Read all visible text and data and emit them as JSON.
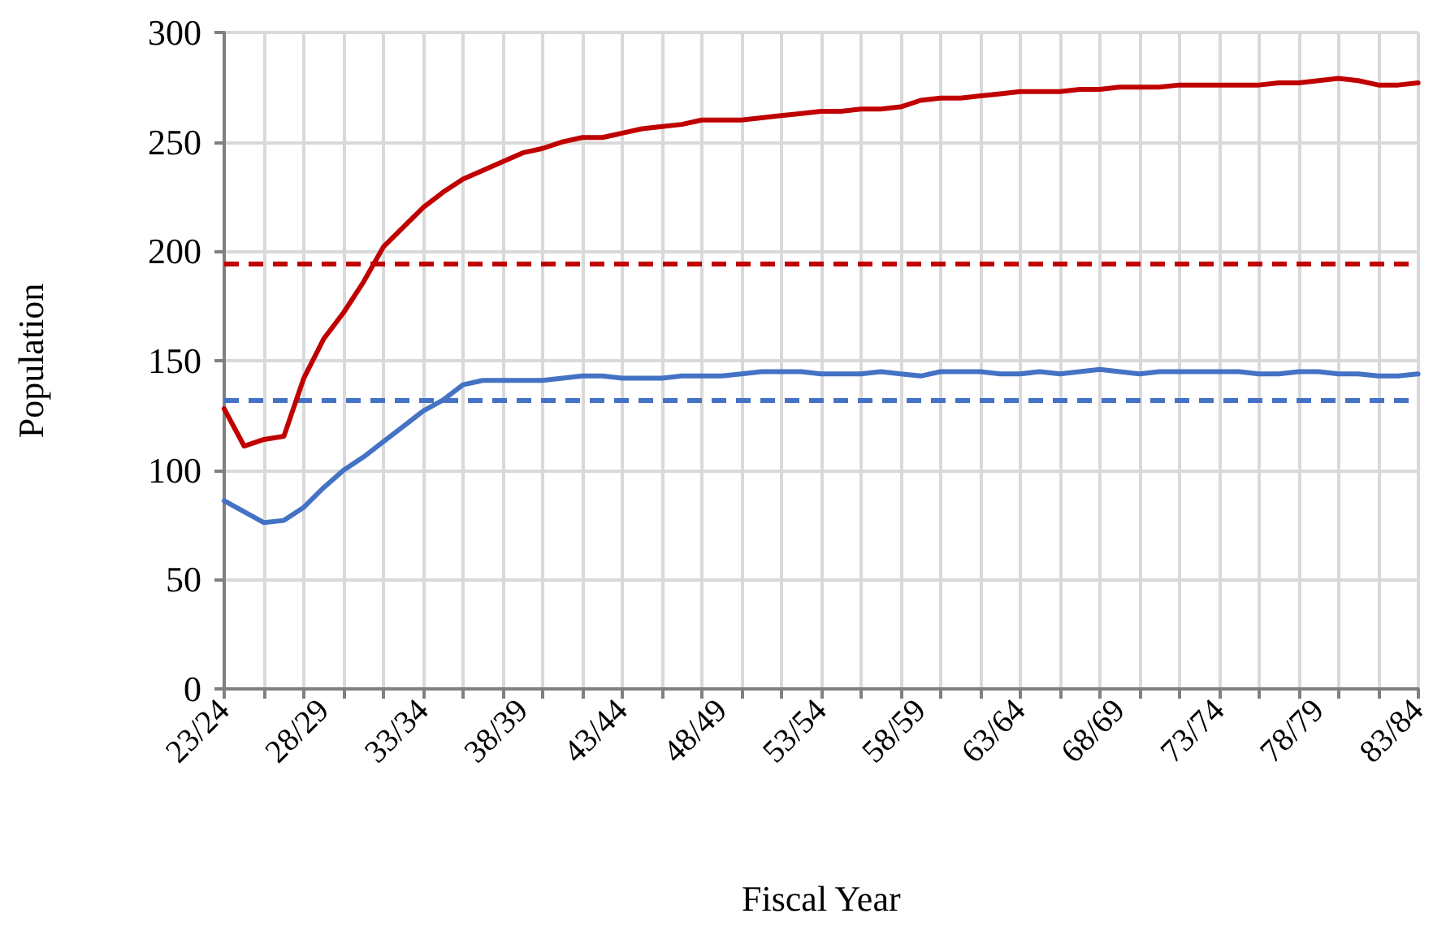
{
  "chart_data": {
    "type": "line",
    "xlabel": "Fiscal Year",
    "ylabel": "Population",
    "categories": [
      "23/24",
      null,
      null,
      null,
      null,
      "28/29",
      null,
      null,
      null,
      null,
      "33/34",
      null,
      null,
      null,
      null,
      "38/39",
      null,
      null,
      null,
      null,
      "43/44",
      null,
      null,
      null,
      null,
      "48/49",
      null,
      null,
      null,
      null,
      "53/54",
      null,
      null,
      null,
      null,
      "58/59",
      null,
      null,
      null,
      null,
      "63/64",
      null,
      null,
      null,
      null,
      "68/69",
      null,
      null,
      null,
      null,
      "73/74",
      null,
      null,
      null,
      null,
      "78/79",
      null,
      null,
      null,
      null,
      "83/84"
    ],
    "series": [
      {
        "color": "#c00000",
        "values": [
          128,
          111,
          114,
          115.5,
          142,
          160,
          172,
          186,
          202,
          211,
          220,
          227,
          233,
          237,
          241,
          245,
          247,
          250,
          252,
          252,
          254,
          256,
          257,
          258,
          260,
          260,
          260,
          261,
          262,
          263,
          264,
          264,
          265,
          265,
          266,
          269,
          270,
          270,
          271,
          272,
          273,
          273,
          273,
          274,
          274,
          275,
          275,
          275,
          276,
          276,
          276,
          276,
          276,
          277,
          277,
          278,
          279,
          278,
          276,
          276,
          277
        ]
      },
      {
        "color": "#4472c4",
        "values": [
          86,
          81,
          76,
          77,
          83,
          92,
          100,
          106,
          113,
          120,
          127,
          132,
          139,
          141,
          141,
          141,
          141,
          142,
          143,
          143,
          142,
          142,
          142,
          143,
          143,
          143,
          144,
          145,
          145,
          145,
          144,
          144,
          144,
          145,
          144,
          143,
          145,
          145,
          145,
          144,
          144,
          145,
          144,
          145,
          146,
          145,
          144,
          145,
          145,
          145,
          145,
          145,
          144,
          144,
          145,
          145,
          144,
          144,
          143,
          143,
          144
        ]
      }
    ],
    "ref_lines": [
      {
        "axis": "y",
        "value": 194,
        "color": "#c00000",
        "line_style": "dashed"
      },
      {
        "axis": "y",
        "value": 132,
        "color": "#4472c4",
        "line_style": "dashed"
      }
    ],
    "ylim": [
      0,
      300
    ],
    "yticks": [
      0,
      50,
      100,
      150,
      200,
      250,
      300
    ],
    "grid": true,
    "line_style": "solid",
    "marker": "none"
  }
}
